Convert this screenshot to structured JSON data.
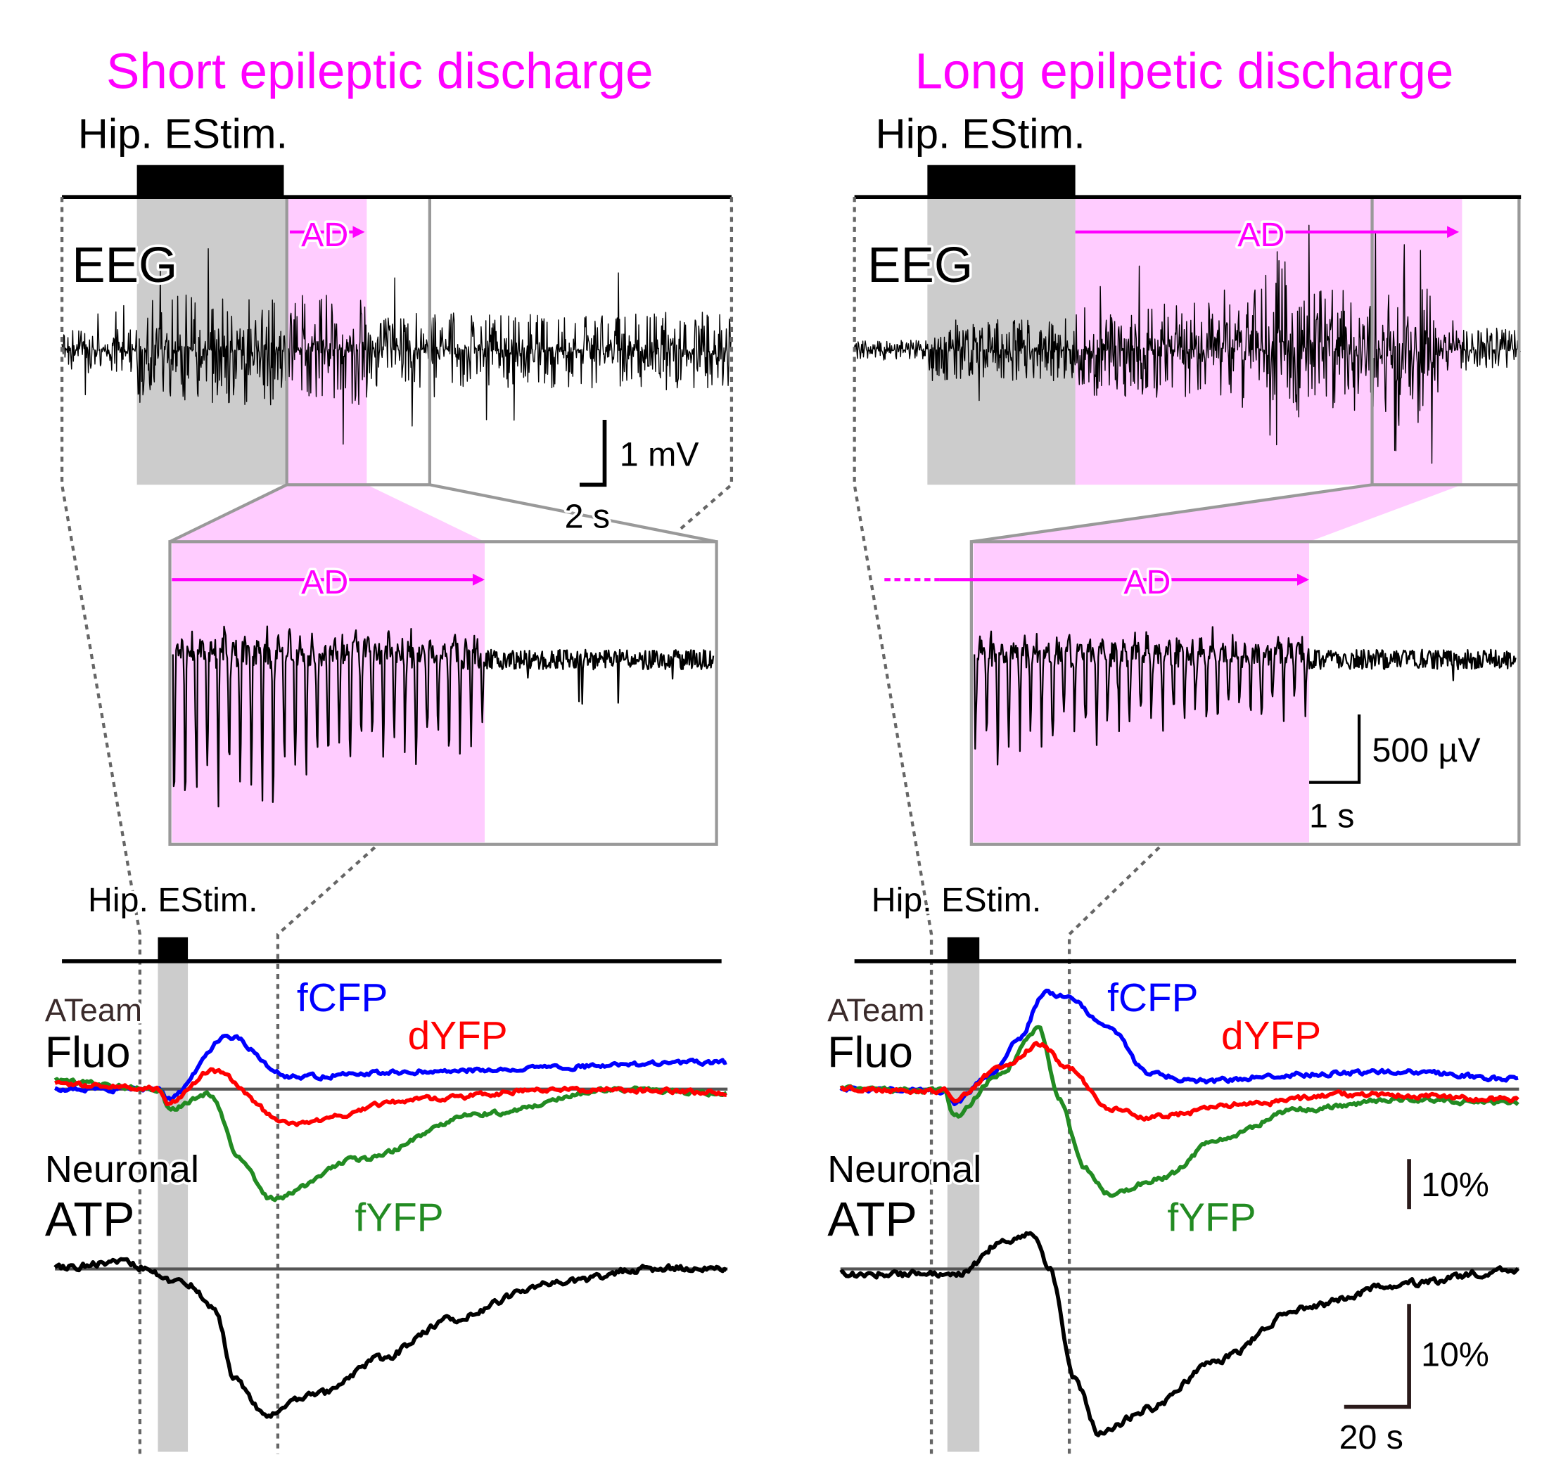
{
  "panels": [
    {
      "title": "Short epileptic discharge",
      "stim": "Hip. EStim.",
      "eeg": "EEG",
      "ad": "AD",
      "inset_ad": "AD",
      "eeg_scale_v": "1 mV",
      "eeg_scale_t": "2 s",
      "lower": {
        "stim": "Hip. EStim.",
        "ateam": "ATeam",
        "fluo": "Fluo",
        "fcfp": "fCFP",
        "dyfp": "dYFP",
        "fyfp": "fYFP",
        "neuronal": "Neuronal",
        "atp": "ATP"
      }
    },
    {
      "title": "Long epilpetic discharge",
      "stim": "Hip. EStim.",
      "eeg": "EEG",
      "ad": "AD",
      "inset_ad": "AD",
      "inset_scale_v": "500 µV",
      "inset_scale_t": "1 s",
      "lower": {
        "stim": "Hip. EStim.",
        "ateam": "ATeam",
        "fluo": "Fluo",
        "fcfp": "fCFP",
        "dyfp": "dYFP",
        "fyfp": "fYFP",
        "neuronal": "Neuronal",
        "atp": "ATP",
        "fluo_scale": "10%",
        "atp_scale_v": "10%",
        "atp_scale_t": "20 s"
      }
    }
  ]
}
